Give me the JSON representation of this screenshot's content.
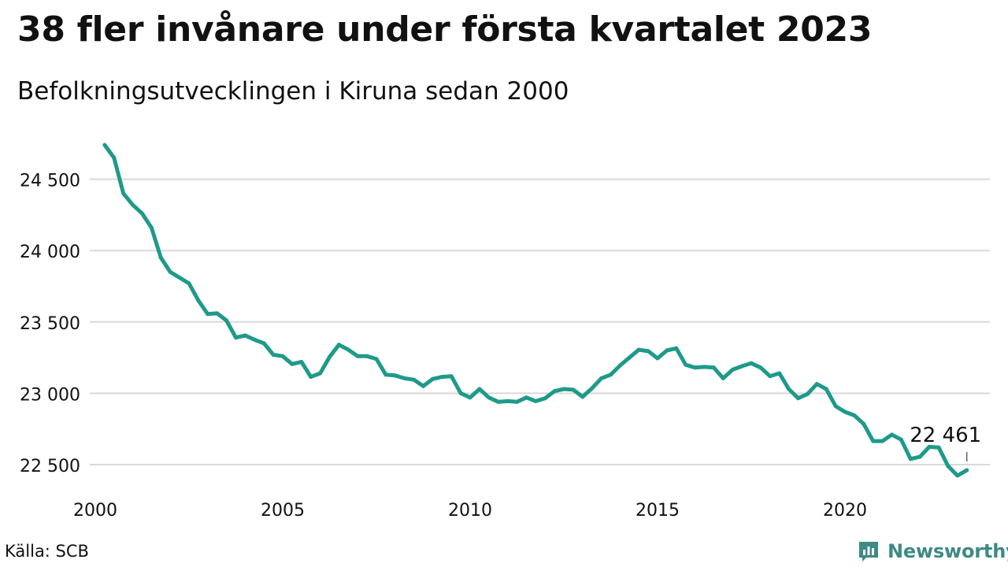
{
  "title": "38 fler invånare under första kvartalet 2023",
  "subtitle": "Befolkningsutvecklingen i Kiruna sedan 2000",
  "source": "Källa: SCB",
  "brand": {
    "name": "Newsworthy",
    "icon": "bar-chart-speech-bubble-icon",
    "color": "#3d8a86"
  },
  "colors": {
    "line": "#1f9a8a",
    "grid": "#d9d9d9",
    "text": "#111111"
  },
  "chart_data": {
    "type": "line",
    "title": "38 fler invånare under första kvartalet 2023",
    "subtitle": "Befolkningsutvecklingen i Kiruna sedan 2000",
    "xlabel": "",
    "ylabel": "",
    "xlim": [
      2000,
      2023.25
    ],
    "ylim": [
      22400,
      24750
    ],
    "y_ticks": [
      22500,
      23000,
      23500,
      24000,
      24500
    ],
    "y_tick_labels": [
      "22 500",
      "23 000",
      "23 500",
      "24 000",
      "24 500"
    ],
    "x_ticks": [
      2000,
      2005,
      2010,
      2015,
      2020
    ],
    "x_tick_labels": [
      "2000",
      "2005",
      "2010",
      "2015",
      "2020"
    ],
    "grid": "horizontal",
    "annotation": {
      "x": 2023.25,
      "y": 22461,
      "text": "22 461"
    },
    "x": [
      2000.25,
      2000.5,
      2000.75,
      2001,
      2001.25,
      2001.5,
      2001.75,
      2002,
      2002.25,
      2002.5,
      2002.75,
      2003,
      2003.25,
      2003.5,
      2003.75,
      2004,
      2004.25,
      2004.5,
      2004.75,
      2005,
      2005.25,
      2005.5,
      2005.75,
      2006,
      2006.25,
      2006.5,
      2006.75,
      2007,
      2007.25,
      2007.5,
      2007.75,
      2008,
      2008.25,
      2008.5,
      2008.75,
      2009,
      2009.25,
      2009.5,
      2009.75,
      2010,
      2010.25,
      2010.5,
      2010.75,
      2011,
      2011.25,
      2011.5,
      2011.75,
      2012,
      2012.25,
      2012.5,
      2012.75,
      2013,
      2013.25,
      2013.5,
      2013.75,
      2014,
      2014.25,
      2014.5,
      2014.75,
      2015,
      2015.25,
      2015.5,
      2015.75,
      2016,
      2016.25,
      2016.5,
      2016.75,
      2017,
      2017.25,
      2017.5,
      2017.75,
      2018,
      2018.25,
      2018.5,
      2018.75,
      2019,
      2019.25,
      2019.5,
      2019.75,
      2020,
      2020.25,
      2020.5,
      2020.75,
      2021,
      2021.25,
      2021.5,
      2021.75,
      2022,
      2022.25,
      2022.5,
      2022.75,
      2023,
      2023.25
    ],
    "series": [
      {
        "values": [
          24740,
          24650,
          24400,
          24320,
          24260,
          24160,
          23950,
          23850,
          23810,
          23770,
          23650,
          23555,
          23560,
          23510,
          23390,
          23405,
          23375,
          23350,
          23270,
          23260,
          23205,
          23220,
          23115,
          23140,
          23255,
          23340,
          23305,
          23260,
          23260,
          23240,
          23130,
          23125,
          23105,
          23095,
          23050,
          23100,
          23115,
          23120,
          23000,
          22970,
          23030,
          22970,
          22940,
          22945,
          22940,
          22970,
          22945,
          22965,
          23015,
          23030,
          23025,
          22975,
          23035,
          23105,
          23130,
          23195,
          23250,
          23305,
          23295,
          23245,
          23300,
          23315,
          23200,
          23180,
          23185,
          23180,
          23105,
          23165,
          23190,
          23210,
          23180,
          23120,
          23140,
          23030,
          22965,
          22995,
          23065,
          23030,
          22910,
          22870,
          22845,
          22785,
          22665,
          22665,
          22710,
          22675,
          22540,
          22555,
          22625,
          22620,
          22490,
          22423,
          22461
        ]
      }
    ]
  }
}
